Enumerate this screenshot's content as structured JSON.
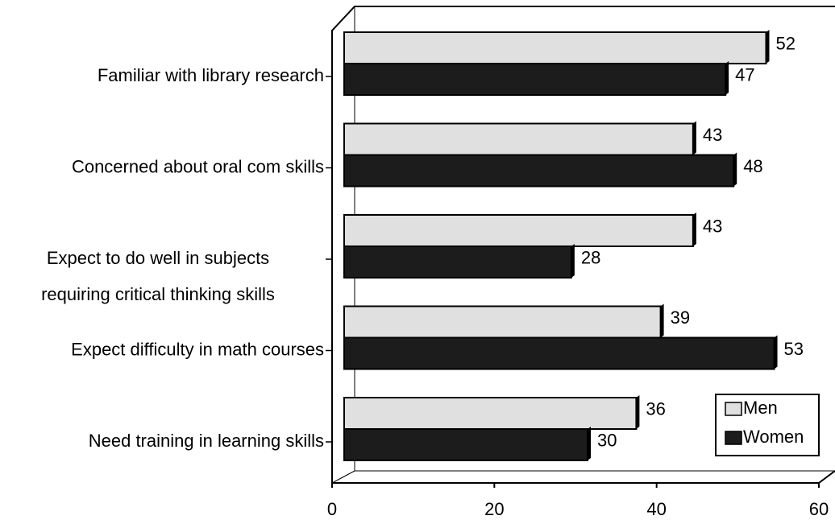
{
  "chart_data": {
    "type": "bar",
    "orientation": "horizontal",
    "categories": [
      "Familiar with library research",
      "Concerned about oral com skills",
      "Expect to do well in subjects\nrequiring critical thinking skills",
      "Expect difficulty in math courses",
      "Need training in learning skills"
    ],
    "series": [
      {
        "name": "Men",
        "color": "#e0e0e0",
        "values": [
          52,
          43,
          43,
          39,
          36
        ]
      },
      {
        "name": "Women",
        "color": "#1c1c1c",
        "values": [
          47,
          48,
          28,
          53,
          30
        ]
      }
    ],
    "xlim": [
      0,
      60
    ],
    "xticks": [
      0,
      20,
      40,
      60
    ],
    "legend": "lower right"
  }
}
